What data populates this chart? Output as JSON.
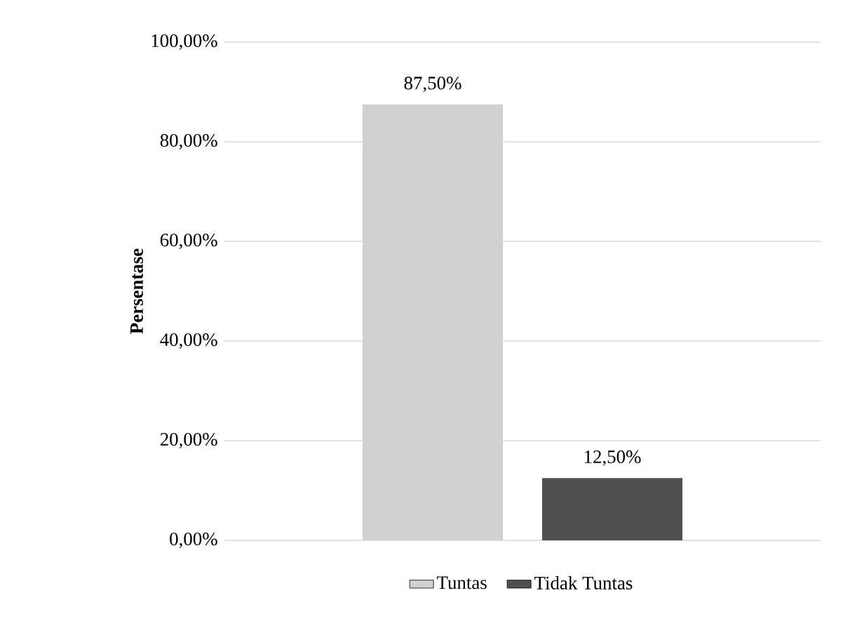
{
  "chart_data": {
    "type": "bar",
    "ylabel": "Persentase",
    "categories": [
      null
    ],
    "series": [
      {
        "name": "Tuntas",
        "color": "#d0d0d0",
        "values": [
          87.5
        ],
        "value_labels": [
          "87,50%"
        ]
      },
      {
        "name": "Tidak Tuntas",
        "color": "#505050",
        "values": [
          12.5
        ],
        "value_labels": [
          "12,50%"
        ]
      }
    ],
    "ylim": [
      0,
      100
    ],
    "yticks": [
      {
        "value": 0,
        "label": "0,00%"
      },
      {
        "value": 20,
        "label": "20,00%"
      },
      {
        "value": 40,
        "label": "40,00%"
      },
      {
        "value": 60,
        "label": "60,00%"
      },
      {
        "value": 80,
        "label": "80,00%"
      },
      {
        "value": 100,
        "label": "100,00%"
      }
    ],
    "grid": "y",
    "legend": "bottom"
  }
}
